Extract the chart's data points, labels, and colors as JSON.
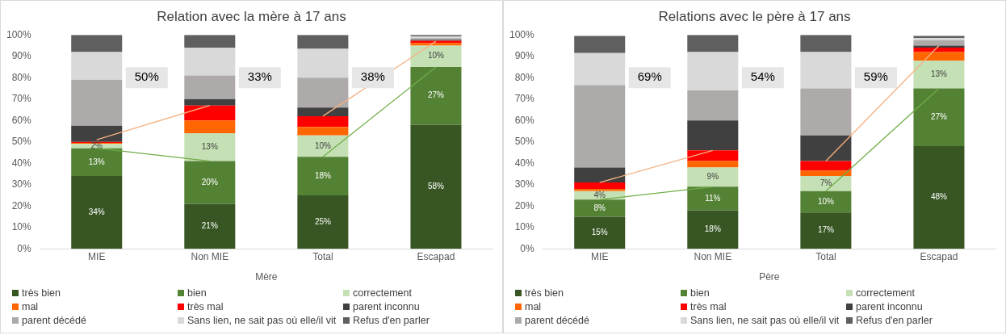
{
  "chart_data": [
    {
      "type": "bar",
      "title": "Relation avec la mère à 17 ans",
      "xlabel": "Mère",
      "categories": [
        "MIE",
        "Non MIE",
        "Total",
        "Escapad"
      ],
      "stacked": true,
      "legend": "bottom",
      "ylim": [
        0,
        100
      ],
      "yticks": [
        {
          "value": 0,
          "label": "0%"
        },
        {
          "value": 10,
          "label": "10%"
        },
        {
          "value": 20,
          "label": "20%"
        },
        {
          "value": 30,
          "label": "30%"
        },
        {
          "value": 40,
          "label": "40%"
        },
        {
          "value": 50,
          "label": "50%"
        },
        {
          "value": 60,
          "label": "60%"
        },
        {
          "value": 70,
          "label": "70%"
        },
        {
          "value": 80,
          "label": "80%"
        },
        {
          "value": 90,
          "label": "90%"
        },
        {
          "value": 100,
          "label": "100%"
        }
      ],
      "series": [
        {
          "name": "très bien",
          "color": "#375623",
          "values": [
            34,
            21,
            25,
            58
          ],
          "value_labels": [
            "34%",
            "21%",
            "25%",
            "58%"
          ]
        },
        {
          "name": "bien",
          "color": "#548235",
          "values": [
            13,
            20,
            18,
            27
          ],
          "value_labels": [
            "13%",
            "20%",
            "18%",
            "27%"
          ]
        },
        {
          "name": "correctement",
          "color": "#c5e0b4",
          "values": [
            2,
            13,
            10,
            10
          ],
          "value_labels": [
            "2%",
            "13%",
            "10%",
            "10%"
          ]
        },
        {
          "name": "mal",
          "color": "#ff6600",
          "values": [
            0.5,
            6,
            4,
            1.2
          ]
        },
        {
          "name": "très mal",
          "color": "#ff0000",
          "values": [
            0.5,
            7,
            5,
            1
          ]
        },
        {
          "name": "parent inconnu",
          "color": "#404040",
          "values": [
            7.5,
            3,
            4,
            0.5
          ]
        },
        {
          "name": "parent décédé",
          "color": "#aeaaaa",
          "values": [
            21.5,
            11,
            14,
            0.8
          ]
        },
        {
          "name": "Sans lien, ne sait pas où elle/il vit",
          "color": "#d9d9d9",
          "values": [
            13,
            13,
            13.5,
            0.8
          ]
        },
        {
          "name": "Refus d'en parler",
          "color": "#5f5f5f",
          "values": [
            8,
            6,
            6.5,
            0.7
          ]
        },
        {
          "type": "line",
          "color": "#70ad47",
          "values": [
            47,
            41,
            null,
            null
          ]
        },
        {
          "type": "line",
          "color": "#70ad47",
          "values": [
            null,
            null,
            43,
            85
          ]
        },
        {
          "type": "line",
          "color": "#f4b183",
          "values": [
            51,
            67,
            null,
            null
          ]
        },
        {
          "type": "line",
          "color": "#f4b183",
          "values": [
            null,
            null,
            62,
            97
          ]
        }
      ],
      "annotations": [
        "50%",
        "33%",
        "38%"
      ]
    },
    {
      "type": "bar",
      "title": "Relations avec le père à 17 ans",
      "xlabel": "Père",
      "categories": [
        "MIE",
        "Non MIE",
        "Total",
        "Escapad"
      ],
      "stacked": true,
      "legend": "bottom",
      "ylim": [
        0,
        100
      ],
      "yticks": [
        {
          "value": 0,
          "label": "0%"
        },
        {
          "value": 10,
          "label": "10%"
        },
        {
          "value": 20,
          "label": "20%"
        },
        {
          "value": 30,
          "label": "30%"
        },
        {
          "value": 40,
          "label": "40%"
        },
        {
          "value": 50,
          "label": "50%"
        },
        {
          "value": 60,
          "label": "60%"
        },
        {
          "value": 70,
          "label": "70%"
        },
        {
          "value": 80,
          "label": "80%"
        },
        {
          "value": 90,
          "label": "90%"
        },
        {
          "value": 100,
          "label": "100%"
        }
      ],
      "series": [
        {
          "name": "très bien",
          "color": "#375623",
          "values": [
            15,
            18,
            17,
            48
          ],
          "value_labels": [
            "15%",
            "18%",
            "17%",
            "48%"
          ]
        },
        {
          "name": "bien",
          "color": "#548235",
          "values": [
            8,
            11,
            10,
            27
          ],
          "value_labels": [
            "8%",
            "11%",
            "10%",
            "27%"
          ]
        },
        {
          "name": "correctement",
          "color": "#c5e0b4",
          "values": [
            4,
            9,
            7,
            13
          ],
          "value_labels": [
            "4%",
            "9%",
            "7%",
            "13%"
          ]
        },
        {
          "name": "mal",
          "color": "#ff6600",
          "values": [
            1,
            3,
            2.5,
            4
          ]
        },
        {
          "name": "très mal",
          "color": "#ff0000",
          "values": [
            3,
            5,
            4.5,
            2
          ]
        },
        {
          "name": "parent inconnu",
          "color": "#404040",
          "values": [
            7,
            14,
            12,
            1
          ]
        },
        {
          "name": "parent décédé",
          "color": "#aeaaaa",
          "values": [
            38.5,
            14,
            22,
            2.5
          ]
        },
        {
          "name": "Sans lien, ne sait pas où elle/il vit",
          "color": "#d9d9d9",
          "values": [
            15,
            18,
            17,
            1
          ]
        },
        {
          "name": "Refus d'en parler",
          "color": "#5f5f5f",
          "values": [
            8,
            8,
            8,
            1
          ]
        },
        {
          "type": "line",
          "color": "#70ad47",
          "values": [
            23,
            29,
            null,
            null
          ]
        },
        {
          "type": "line",
          "color": "#70ad47",
          "values": [
            null,
            null,
            27,
            75
          ]
        },
        {
          "type": "line",
          "color": "#f4b183",
          "values": [
            31,
            46,
            null,
            null
          ]
        },
        {
          "type": "line",
          "color": "#f4b183",
          "values": [
            null,
            null,
            41,
            95
          ]
        }
      ],
      "annotations": [
        "69%",
        "54%",
        "59%"
      ]
    }
  ]
}
